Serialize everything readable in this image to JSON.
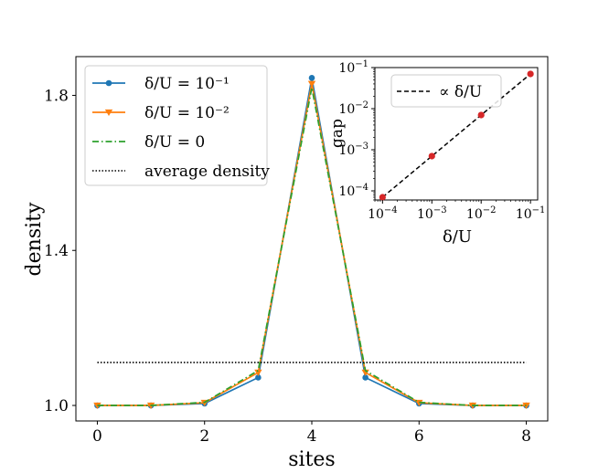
{
  "chart_data": [
    {
      "type": "line",
      "xlabel": "sites",
      "ylabel": "density",
      "xlim": [
        -0.4,
        8.4
      ],
      "ylim": [
        0.96,
        1.9
      ],
      "xticks": [
        0,
        2,
        4,
        6,
        8
      ],
      "xtick_labels": [
        "0",
        "2",
        "4",
        "6",
        "8"
      ],
      "yticks": [
        1.0,
        1.4,
        1.8
      ],
      "ytick_labels": [
        "1.0",
        "1.4",
        "1.8"
      ],
      "x": [
        0,
        1,
        2,
        3,
        4,
        5,
        6,
        7,
        8
      ],
      "series": [
        {
          "name": "δ/U = 10⁻¹",
          "color": "#1f77b4",
          "style": "solid",
          "marker": "circle",
          "values": [
            1.0,
            1.0,
            1.005,
            1.072,
            1.845,
            1.072,
            1.005,
            1.0,
            1.0
          ]
        },
        {
          "name": "δ/U = 10⁻²",
          "color": "#ff7f0e",
          "style": "solid",
          "marker": "triangle-down",
          "values": [
            1.0,
            1.0,
            1.007,
            1.085,
            1.83,
            1.085,
            1.007,
            1.0,
            1.0
          ]
        },
        {
          "name": "δ/U = 0",
          "color": "#2ca02c",
          "style": "dashdot",
          "marker": "none",
          "values": [
            1.0,
            1.0,
            1.008,
            1.09,
            1.82,
            1.09,
            1.008,
            1.0,
            1.0
          ]
        },
        {
          "name": "average density",
          "color": "#000000",
          "style": "dotted",
          "marker": "none",
          "x": [
            0,
            8
          ],
          "values": [
            1.111,
            1.111
          ]
        }
      ],
      "legend_position": "top-left"
    },
    {
      "type": "scatter",
      "scale": "log-log",
      "xlabel": "δ/U",
      "ylabel": "gap",
      "xlim": [
        7e-05,
        0.14
      ],
      "ylim": [
        6e-05,
        0.1
      ],
      "xticks": [
        0.0001,
        0.001,
        0.01,
        0.1
      ],
      "xtick_bases": [
        "10",
        "10",
        "10",
        "10"
      ],
      "xtick_exps": [
        "−4",
        "−3",
        "−2",
        "−1"
      ],
      "yticks": [
        0.0001,
        0.001,
        0.01,
        0.1
      ],
      "ytick_bases": [
        "10",
        "10",
        "10",
        "10"
      ],
      "ytick_exps": [
        "−4",
        "−3",
        "−2",
        "−1"
      ],
      "points": {
        "x": [
          0.0001,
          0.001,
          0.01,
          0.1
        ],
        "y": [
          7e-05,
          0.0007,
          0.007,
          0.07
        ],
        "color": "#d62728"
      },
      "fit": {
        "name": "∝ δ/U",
        "color": "#000000",
        "style": "dashed",
        "x": [
          0.0001,
          0.1
        ],
        "y": [
          7e-05,
          0.07
        ]
      },
      "legend_position": "top-left"
    }
  ]
}
